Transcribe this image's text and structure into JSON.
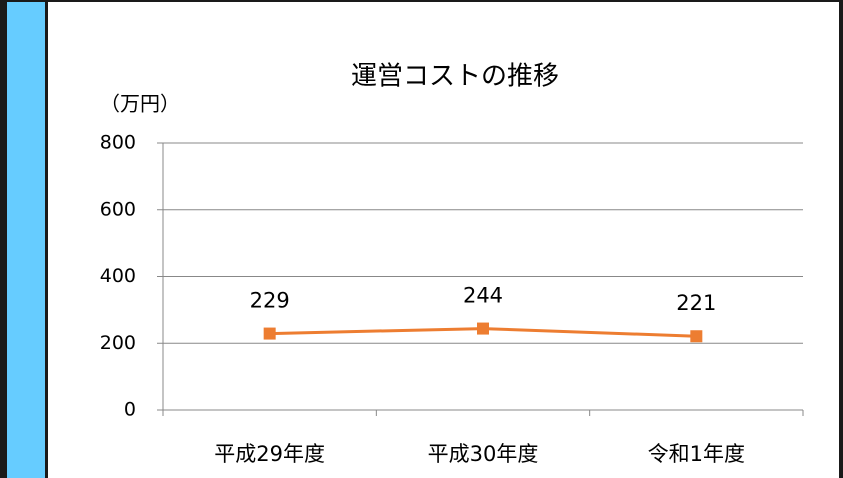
{
  "chart_data": {
    "type": "line",
    "title": "運営コストの推移",
    "y_label": "（万円）",
    "categories": [
      "平成29年度",
      "平成30年度",
      "令和1年度"
    ],
    "values": [
      229,
      244,
      221
    ],
    "color": "#ed7d31",
    "ylim": [
      0,
      800
    ],
    "yticks": [
      0,
      200,
      400,
      600,
      800
    ],
    "grid": true
  }
}
